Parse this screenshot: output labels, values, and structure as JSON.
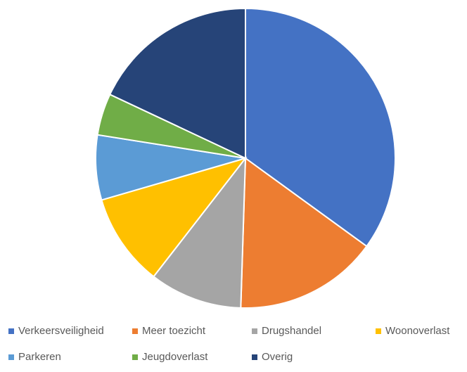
{
  "chart_data": {
    "type": "pie",
    "title": "",
    "start_angle_deg": 0,
    "direction": "clockwise",
    "legend_position": "bottom",
    "slices": [
      {
        "label": "Verkeersveiligheid",
        "value": 35.0,
        "color": "#4472C4"
      },
      {
        "label": "Meer toezicht",
        "value": 15.5,
        "color": "#ED7D31"
      },
      {
        "label": "Drugshandel",
        "value": 10.0,
        "color": "#A5A5A5"
      },
      {
        "label": "Woonoverlast",
        "value": 10.0,
        "color": "#FFC000"
      },
      {
        "label": "Parkeren",
        "value": 7.0,
        "color": "#5B9BD5"
      },
      {
        "label": "Jeugdoverlast",
        "value": 4.5,
        "color": "#70AD47"
      },
      {
        "label": "Overig",
        "value": 18.0,
        "color": "#264478"
      }
    ]
  }
}
